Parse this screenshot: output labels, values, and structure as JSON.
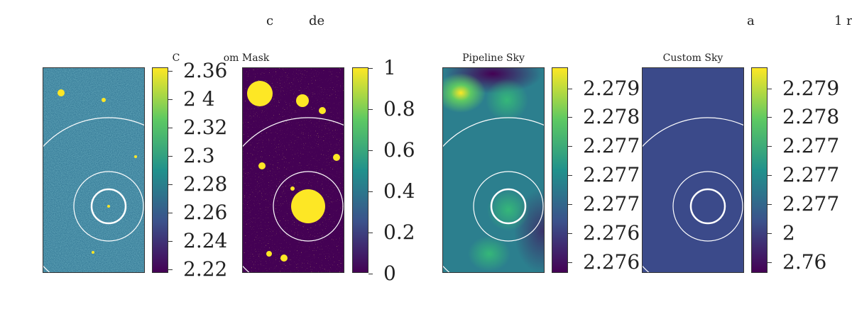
{
  "top_texts": [
    "c",
    "de",
    "a",
    "1 r"
  ],
  "panel_titles": [
    "C",
    "om Mask",
    "Pipeline Sky",
    "Custom Sky"
  ],
  "colorbars": [
    {
      "name": "data",
      "ticks": [
        "2.36",
        "2 4",
        "2.32",
        "2.3",
        "2.28",
        "2.26",
        "2.24",
        "2.22"
      ]
    },
    {
      "name": "mask",
      "ticks": [
        "1",
        "0.8",
        "0.6",
        "0.4",
        "0.2",
        "0"
      ]
    },
    {
      "name": "pipeline-sky",
      "ticks": [
        "2.279",
        "2.278",
        "2.277",
        "2.277",
        "2.277",
        "2.276",
        "2.276"
      ]
    },
    {
      "name": "custom-sky",
      "ticks": [
        "2.279",
        "2.278",
        "2.277",
        "2.277",
        "2.277",
        "2",
        "2.76"
      ]
    }
  ],
  "colors": {
    "viridis_dark": "#440154",
    "viridis_mid": "#21918c",
    "viridis_bright": "#fde725",
    "custom_sky_fill": "#3b4a8a",
    "ring": "#ffffff"
  }
}
